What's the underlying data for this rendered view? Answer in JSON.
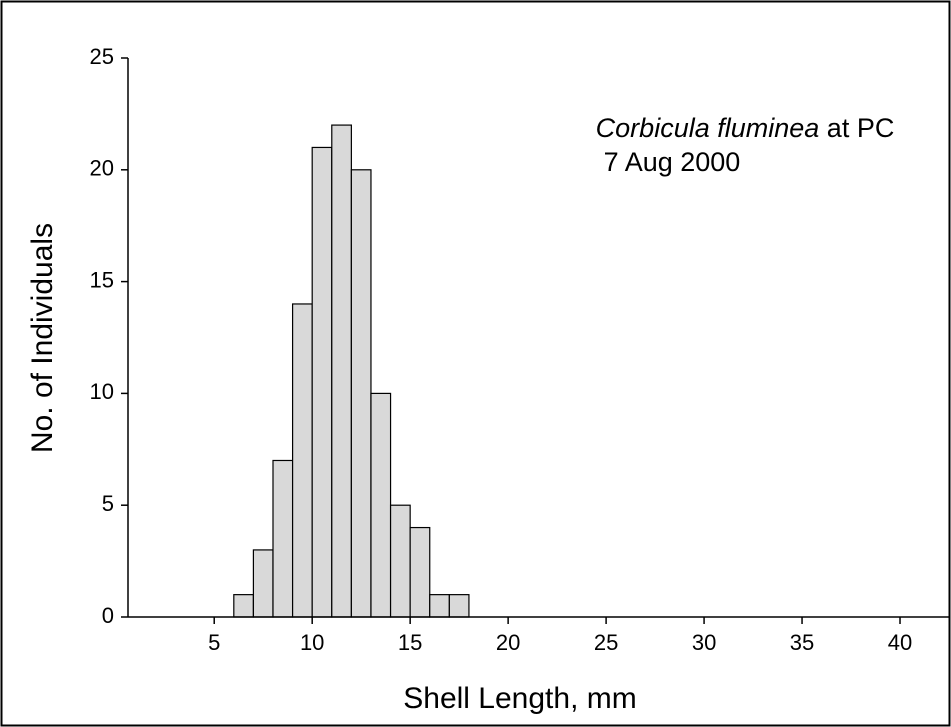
{
  "chart_data": {
    "type": "histogram",
    "annotation": {
      "species": "Corbicula fluminea",
      "site": "at PC",
      "date": "7 Aug 2000"
    },
    "x_label": "Shell Length, mm",
    "y_label": "No. of Individuals",
    "bins": [
      6,
      7,
      8,
      9,
      10,
      11,
      12,
      13,
      14,
      15,
      16,
      17,
      18
    ],
    "values": [
      1,
      3,
      7,
      14,
      21,
      22,
      20,
      10,
      5,
      4,
      1,
      1
    ],
    "color": "#d9d9d9",
    "xlim": [
      0.6,
      42.5
    ],
    "xticks": [
      5,
      10,
      15,
      20,
      25,
      30,
      35,
      40
    ],
    "ylim": [
      0,
      25
    ],
    "yticks": [
      0,
      5,
      10,
      15,
      20,
      25
    ]
  }
}
